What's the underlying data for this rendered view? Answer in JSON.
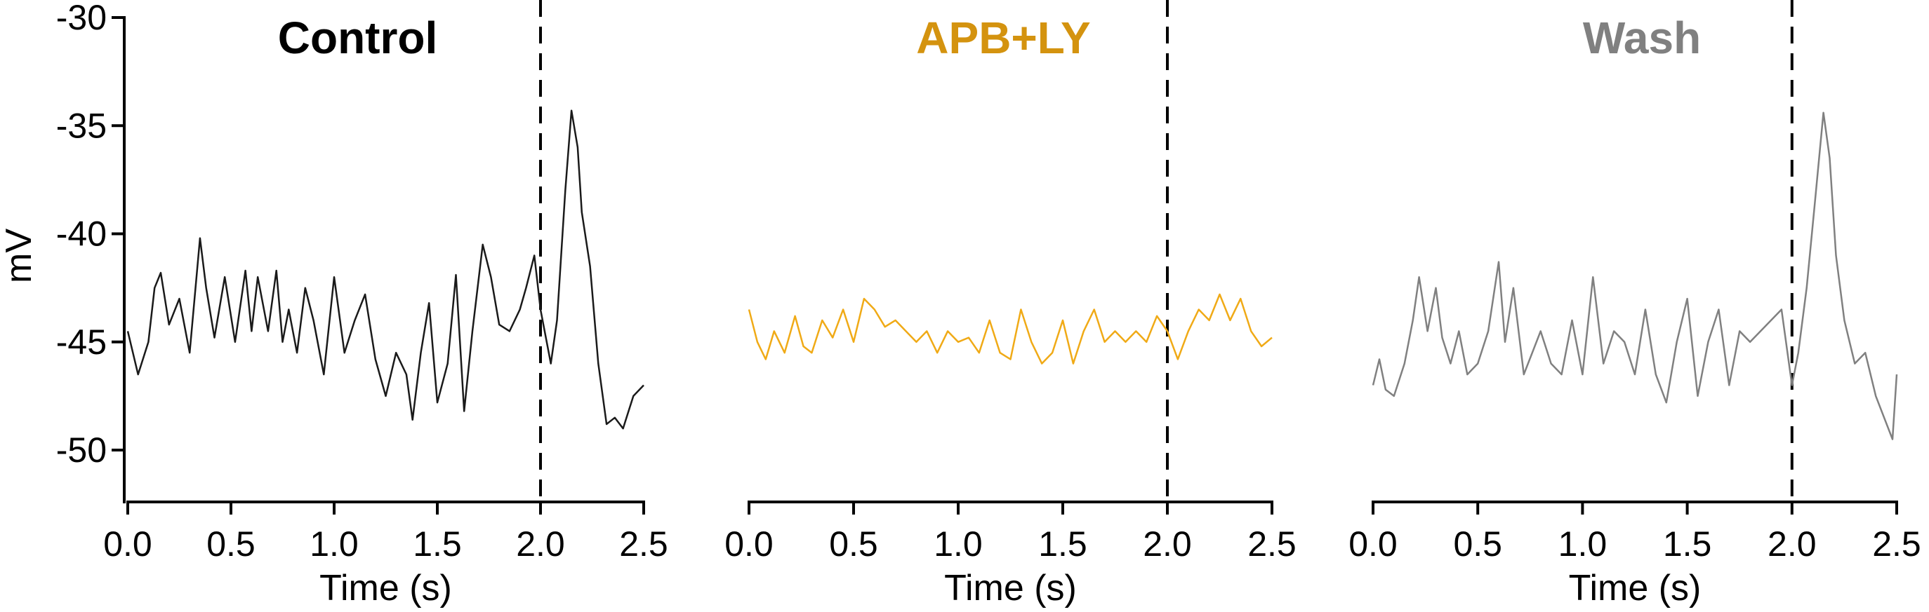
{
  "chart_data": [
    {
      "type": "line",
      "title": "Control",
      "title_color": "#000000",
      "line_color": "#1a1a1a",
      "xlabel": "Time (s)",
      "ylabel": "mV",
      "xlim": [
        0,
        2.5
      ],
      "ylim": [
        -52.3,
        -30
      ],
      "x_ticks": [
        "0.0",
        "0.5",
        "1.0",
        "1.5",
        "2.0",
        "2.5"
      ],
      "y_ticks": [
        "-30",
        "-35",
        "-40",
        "-45",
        "-50"
      ],
      "stimulus_x": 2.0,
      "series": [
        {
          "x": [
            0.0,
            0.05,
            0.1,
            0.13,
            0.16,
            0.2,
            0.25,
            0.3,
            0.35,
            0.38,
            0.42,
            0.47,
            0.52,
            0.57,
            0.6,
            0.63,
            0.68,
            0.72,
            0.75,
            0.78,
            0.82,
            0.86,
            0.9,
            0.95,
            1.0,
            1.05,
            1.1,
            1.15,
            1.2,
            1.25,
            1.3,
            1.35,
            1.38,
            1.42,
            1.46,
            1.5,
            1.55,
            1.59,
            1.63,
            1.67,
            1.72,
            1.76,
            1.8,
            1.85,
            1.9,
            1.93,
            1.97,
            2.0,
            2.05,
            2.08,
            2.12,
            2.15,
            2.18,
            2.2,
            2.24,
            2.28,
            2.32,
            2.36,
            2.4,
            2.45,
            2.5
          ],
          "y": [
            -44.5,
            -46.5,
            -45.0,
            -42.5,
            -41.8,
            -44.2,
            -43.0,
            -45.5,
            -40.2,
            -42.5,
            -44.8,
            -42.0,
            -45.0,
            -41.7,
            -44.5,
            -42.0,
            -44.5,
            -41.7,
            -45.0,
            -43.5,
            -45.5,
            -42.5,
            -44.0,
            -46.5,
            -42.0,
            -45.5,
            -44.0,
            -42.8,
            -45.8,
            -47.5,
            -45.5,
            -46.5,
            -48.6,
            -45.5,
            -43.2,
            -47.8,
            -46.0,
            -41.9,
            -48.2,
            -44.5,
            -40.5,
            -42.0,
            -44.2,
            -44.5,
            -43.5,
            -42.5,
            -41.0,
            -43.5,
            -46.0,
            -44.0,
            -38.0,
            -34.3,
            -36.0,
            -39.0,
            -41.5,
            -46.0,
            -48.8,
            -48.5,
            -49.0,
            -47.5,
            -47.0
          ]
        }
      ]
    },
    {
      "type": "line",
      "title": "APB+LY",
      "title_color": "#d4930f",
      "line_color": "#f0aa16",
      "xlabel": "Time (s)",
      "ylabel": "",
      "xlim": [
        0,
        2.5
      ],
      "ylim": [
        -52.3,
        -30
      ],
      "x_ticks": [
        "0.0",
        "0.5",
        "1.0",
        "1.5",
        "2.0",
        "2.5"
      ],
      "y_ticks": [],
      "stimulus_x": 2.0,
      "series": [
        {
          "x": [
            0.0,
            0.04,
            0.08,
            0.12,
            0.17,
            0.22,
            0.26,
            0.3,
            0.35,
            0.4,
            0.45,
            0.5,
            0.55,
            0.6,
            0.65,
            0.7,
            0.75,
            0.8,
            0.85,
            0.9,
            0.95,
            1.0,
            1.05,
            1.1,
            1.15,
            1.2,
            1.25,
            1.3,
            1.35,
            1.4,
            1.45,
            1.5,
            1.55,
            1.6,
            1.65,
            1.7,
            1.75,
            1.8,
            1.85,
            1.9,
            1.95,
            2.0,
            2.05,
            2.1,
            2.15,
            2.2,
            2.25,
            2.3,
            2.35,
            2.4,
            2.45,
            2.5
          ],
          "y": [
            -43.5,
            -45.0,
            -45.8,
            -44.5,
            -45.5,
            -43.8,
            -45.2,
            -45.5,
            -44.0,
            -44.8,
            -43.5,
            -45.0,
            -43.0,
            -43.5,
            -44.3,
            -44.0,
            -44.5,
            -45.0,
            -44.5,
            -45.5,
            -44.5,
            -45.0,
            -44.8,
            -45.5,
            -44.0,
            -45.5,
            -45.8,
            -43.5,
            -45.0,
            -46.0,
            -45.5,
            -44.0,
            -46.0,
            -44.5,
            -43.5,
            -45.0,
            -44.5,
            -45.0,
            -44.5,
            -45.0,
            -43.8,
            -44.5,
            -45.8,
            -44.5,
            -43.5,
            -44.0,
            -42.8,
            -44.0,
            -43.0,
            -44.5,
            -45.2,
            -44.8
          ]
        }
      ]
    },
    {
      "type": "line",
      "title": "Wash",
      "title_color": "#808080",
      "line_color": "#808080",
      "xlabel": "Time (s)",
      "ylabel": "",
      "xlim": [
        0,
        2.5
      ],
      "ylim": [
        -52.3,
        -30
      ],
      "x_ticks": [
        "0.0",
        "0.5",
        "1.0",
        "1.5",
        "2.0",
        "2.5"
      ],
      "y_ticks": [],
      "stimulus_x": 2.0,
      "series": [
        {
          "x": [
            0.0,
            0.03,
            0.06,
            0.1,
            0.15,
            0.19,
            0.22,
            0.26,
            0.3,
            0.33,
            0.37,
            0.41,
            0.45,
            0.5,
            0.55,
            0.6,
            0.63,
            0.67,
            0.72,
            0.76,
            0.8,
            0.85,
            0.9,
            0.95,
            1.0,
            1.05,
            1.1,
            1.15,
            1.2,
            1.25,
            1.3,
            1.35,
            1.4,
            1.45,
            1.5,
            1.55,
            1.6,
            1.65,
            1.7,
            1.75,
            1.8,
            1.85,
            1.9,
            1.95,
            2.0,
            2.03,
            2.07,
            2.11,
            2.15,
            2.18,
            2.21,
            2.25,
            2.3,
            2.35,
            2.4,
            2.44,
            2.48,
            2.5
          ],
          "y": [
            -47.0,
            -45.8,
            -47.2,
            -47.5,
            -46.0,
            -44.0,
            -42.0,
            -44.5,
            -42.5,
            -44.8,
            -46.0,
            -44.5,
            -46.5,
            -46.0,
            -44.5,
            -41.3,
            -45.0,
            -42.5,
            -46.5,
            -45.5,
            -44.5,
            -46.0,
            -46.5,
            -44.0,
            -46.5,
            -42.0,
            -46.0,
            -44.5,
            -45.0,
            -46.5,
            -43.5,
            -46.5,
            -47.8,
            -45.0,
            -43.0,
            -47.5,
            -45.0,
            -43.5,
            -47.0,
            -44.5,
            -45.0,
            -44.5,
            -44.0,
            -43.5,
            -47.0,
            -45.5,
            -42.5,
            -38.5,
            -34.4,
            -36.5,
            -41.0,
            -44.0,
            -46.0,
            -45.5,
            -47.5,
            -48.5,
            -49.5,
            -46.5
          ]
        }
      ]
    }
  ]
}
